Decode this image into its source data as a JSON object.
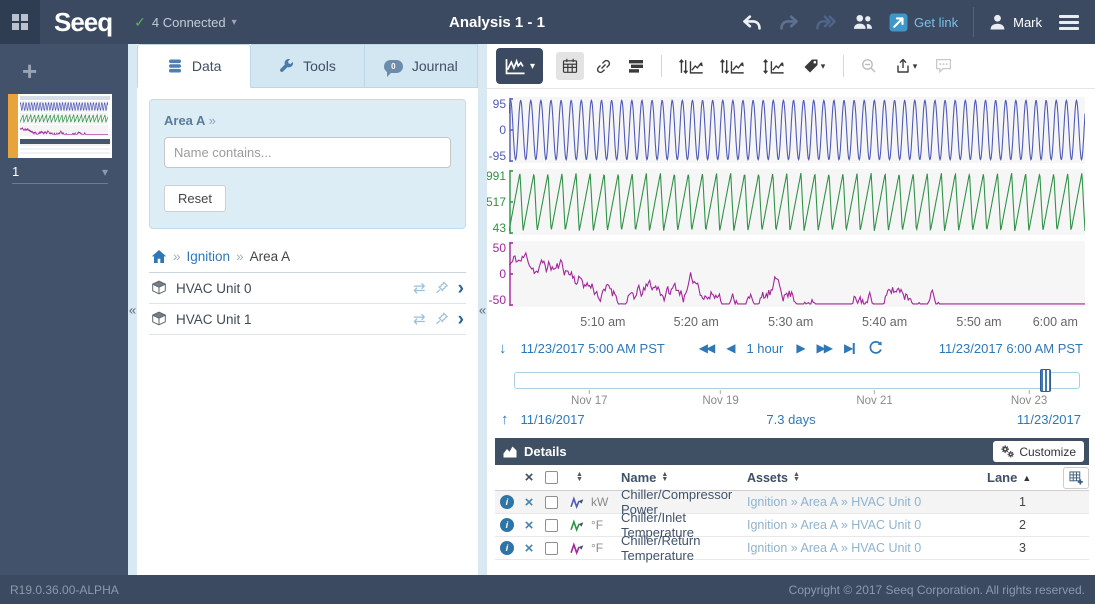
{
  "colors": {
    "topbar_bg": "#3b4a61",
    "sidebar_bg": "#42526b",
    "panel_blue": "#d8e9f3",
    "accent_link": "#2e78b8",
    "light_link": "#8fb3cf",
    "connected_green": "#5cb85c",
    "worksheet_accent_orange": "#e8a33d",
    "details_bar_bg": "#405064"
  },
  "icons": {
    "collapse": "«",
    "guillemet": "»",
    "caret_down": "▾",
    "check": "✓",
    "swap": "⇄",
    "chevron_right": "›",
    "plus": "+",
    "arrow_down": "↓",
    "arrow_up": "↑",
    "play_back": "◀",
    "play_fwd": "▶",
    "sort_up": "▲",
    "sort_down": "▼",
    "remove": "×",
    "info": "i"
  },
  "topbar": {
    "logo": "Seeq",
    "connected_label": "4 Connected",
    "title": "Analysis 1 - 1",
    "get_link_label": "Get link",
    "user_name": "Mark"
  },
  "sidebar": {
    "worksheet_number": "1"
  },
  "panel": {
    "tabs": [
      {
        "label": "Data"
      },
      {
        "label": "Tools"
      },
      {
        "label": "Journal",
        "badge": "0"
      }
    ],
    "search": {
      "scope_label": "Area A",
      "input_placeholder": "Name contains...",
      "reset_label": "Reset"
    },
    "breadcrumb": {
      "link": "Ignition",
      "current": "Area A"
    },
    "assets": [
      {
        "label": "HVAC Unit 0"
      },
      {
        "label": "HVAC Unit 1"
      }
    ]
  },
  "trend": {
    "nav": {
      "start": "11/23/2017 5:00 AM PST",
      "duration": "1 hour",
      "end": "11/23/2017 6:00 AM PST"
    },
    "timeline": {
      "ticks": [
        "Nov 17",
        "Nov 19",
        "Nov 21",
        "Nov 23"
      ],
      "tick_pos": [
        13.3,
        36.5,
        63.7,
        91
      ],
      "handle_pos": 93,
      "start": "11/16/2017",
      "range": "7.3 days",
      "end": "11/23/2017"
    }
  },
  "details": {
    "title": "Details",
    "customize_label": "Customize",
    "header": {
      "name": "Name",
      "assets": "Assets",
      "lane": "Lane"
    },
    "rows": [
      {
        "unit": "kW",
        "name": "Chiller/Compressor Power",
        "assets": "Ignition » Area A » HVAC Unit 0",
        "lane": "1"
      },
      {
        "unit": "°F",
        "name": "Chiller/Inlet Temperature",
        "assets": "Ignition » Area A » HVAC Unit 0",
        "lane": "2"
      },
      {
        "unit": "°F",
        "name": "Chiller/Return Temperature",
        "assets": "Ignition » Area A » HVAC Unit 0",
        "lane": "3"
      }
    ]
  },
  "footer": {
    "version": "R19.0.36.00-ALPHA",
    "copyright": "Copyright © 2017 Seeq Corporation. All rights reserved."
  },
  "chart_data": {
    "type": "line",
    "x_range": {
      "start": "11/23/2017 5:00 AM PST",
      "end": "11/23/2017 6:00 AM PST",
      "duration": "1 hour"
    },
    "x_ticks": [
      "5:10 am",
      "5:20 am",
      "5:30 am",
      "5:40 am",
      "5:50 am",
      "6:00 am"
    ],
    "x_tick_pos": [
      16.3,
      32.5,
      48.9,
      65.2,
      81.6,
      97.2
    ],
    "grid": false,
    "legend": "none",
    "lanes": [
      {
        "name": "Chiller/Compressor Power",
        "unit": "kW",
        "color": "#4f5ab8",
        "y_ticks": [
          "95",
          "0",
          "-95"
        ],
        "ylim": [
          -110,
          110
        ],
        "waveform": "sine",
        "cycles": 57,
        "lane": 1
      },
      {
        "name": "Chiller/Inlet Temperature",
        "unit": "°F",
        "color": "#2f9246",
        "y_ticks": [
          "991",
          "517",
          "43"
        ],
        "ylim": [
          43,
          991
        ],
        "waveform": "sawtooth",
        "cycles": 41,
        "lane": 2
      },
      {
        "name": "Chiller/Return Temperature",
        "unit": "°F",
        "color": "#a2269c",
        "y_ticks": [
          "50",
          "0",
          "-50"
        ],
        "ylim": [
          -55,
          55
        ],
        "waveform": "noise",
        "cycles": 12,
        "lane": 3
      }
    ]
  }
}
